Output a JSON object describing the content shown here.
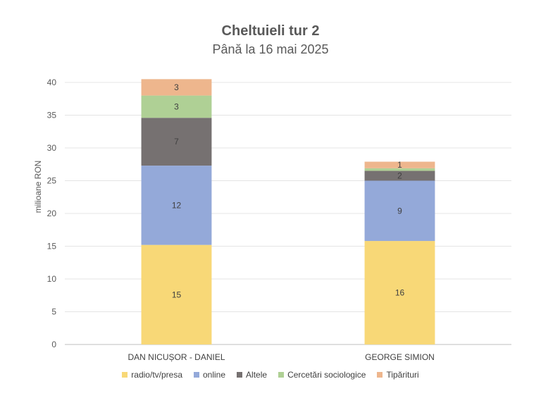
{
  "chart_data": {
    "type": "bar",
    "stacked": true,
    "title": "Cheltuieli tur 2",
    "subtitle": "Până la 16 mai 2025",
    "ylabel": "milioane RON",
    "ylim": [
      0,
      40
    ],
    "yticks": [
      "0",
      "5",
      "10",
      "15",
      "20",
      "25",
      "30",
      "35",
      "40"
    ],
    "grid": true,
    "legend_position": "bottom",
    "categories": [
      "DAN NICUȘOR - DANIEL",
      "GEORGE SIMION"
    ],
    "series": [
      {
        "name": "radio/tv/presa",
        "color": "#F8D877",
        "values": [
          15.2,
          15.8
        ],
        "labels": [
          "15",
          "16"
        ]
      },
      {
        "name": "online",
        "color": "#94A9D9",
        "values": [
          12.1,
          9.2
        ],
        "labels": [
          "12",
          "9"
        ]
      },
      {
        "name": "Altele",
        "color": "#767171",
        "values": [
          7.3,
          1.5
        ],
        "labels": [
          "7",
          "2"
        ]
      },
      {
        "name": "Cercetări sociologice",
        "color": "#AFD095",
        "values": [
          3.4,
          0.4
        ],
        "labels": [
          "3",
          ""
        ]
      },
      {
        "name": "Tipărituri",
        "color": "#EEB68D",
        "values": [
          2.5,
          1.0
        ],
        "labels": [
          "3",
          "1"
        ]
      }
    ]
  }
}
